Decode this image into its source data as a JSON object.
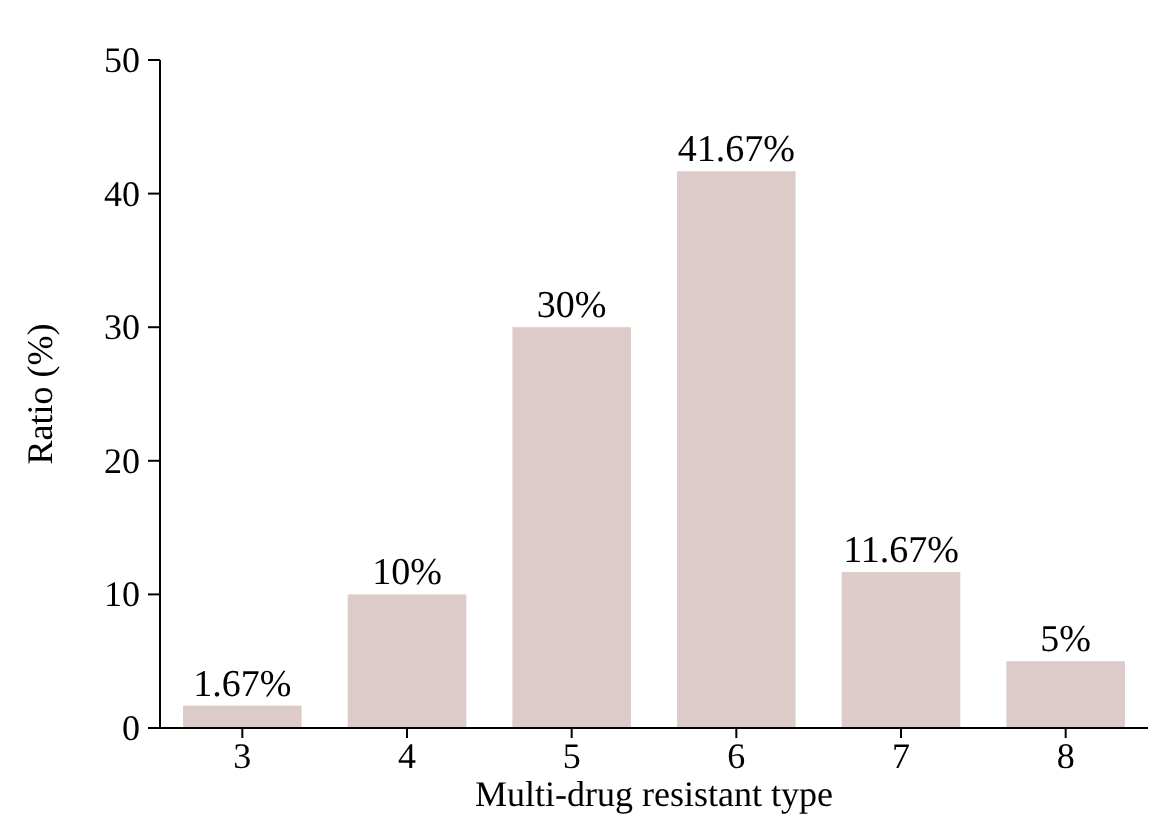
{
  "chart_data": {
    "type": "bar",
    "xlabel": "Multi-drug resistant type",
    "ylabel": "Ratio (%)",
    "categories": [
      "3",
      "4",
      "5",
      "6",
      "7",
      "8"
    ],
    "values": [
      1.67,
      10,
      30,
      41.67,
      11.67,
      5
    ],
    "value_labels": [
      "1.67%",
      "10%",
      "30%",
      "41.67%",
      "11.67%",
      "5%"
    ],
    "color": "#dccbc9",
    "ylim": [
      0,
      50
    ],
    "yticks": [
      0,
      10,
      20,
      30,
      40,
      50
    ],
    "grid": false
  }
}
